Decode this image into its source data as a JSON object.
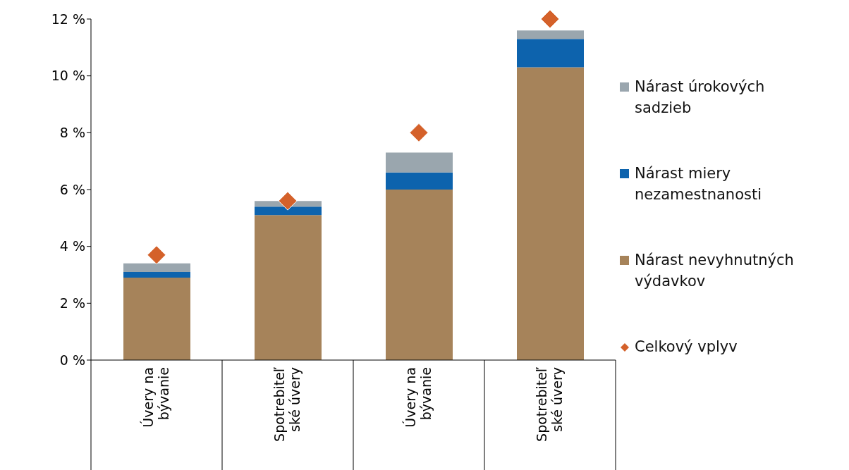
{
  "chart_data": {
    "type": "bar",
    "stacked": true,
    "categories": [
      "Úvery na\nbývanie",
      "Spotrebiteľ\nské úvery",
      "Úvery na\nbývanie",
      "Spotrebiteľ\nské úvery"
    ],
    "series": [
      {
        "name": "Nárast nevyhnutných výdavkov",
        "color": "#a6835a",
        "values": [
          2.9,
          5.1,
          6.0,
          10.3
        ]
      },
      {
        "name": "Nárast miery nezamestnanosti",
        "color": "#0d63ad",
        "values": [
          0.2,
          0.3,
          0.6,
          1.0
        ]
      },
      {
        "name": "Nárast úrokových sadzieb",
        "color": "#9aa6ae",
        "values": [
          0.3,
          0.2,
          0.7,
          0.3
        ]
      },
      {
        "name": "Celkový vplyv",
        "type": "scatter",
        "marker": "diamond",
        "color": "#d4612a",
        "values": [
          3.7,
          5.6,
          8.0,
          12.0
        ]
      }
    ],
    "ylim": [
      0,
      12
    ],
    "yticks": [
      {
        "value": 0,
        "label": "0 %"
      },
      {
        "value": 2,
        "label": "2 %"
      },
      {
        "value": 4,
        "label": "4 %"
      },
      {
        "value": 6,
        "label": "6 %"
      },
      {
        "value": 8,
        "label": "8 %"
      },
      {
        "value": 10,
        "label": "10 %"
      },
      {
        "value": 12,
        "label": "12 %"
      }
    ],
    "grid": false,
    "legend": "right"
  }
}
